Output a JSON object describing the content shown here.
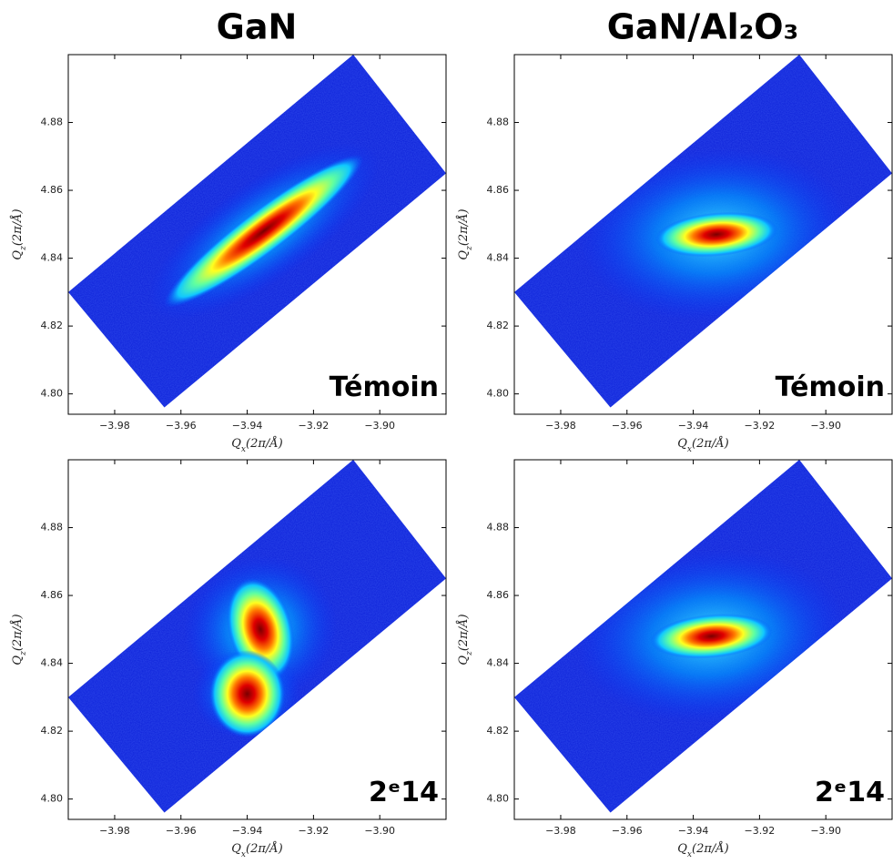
{
  "titles": [
    "GaN",
    "GaN/Al₂O₃"
  ],
  "chart_data": [
    {
      "type": "heatmap",
      "label": "Témoin",
      "xlabel": [
        "Q",
        "x",
        "(2π/Å)"
      ],
      "ylabel": [
        "Q",
        "z",
        "(2π/Å)"
      ],
      "xlim": [
        -3.994,
        -3.88
      ],
      "ylim": [
        4.794,
        4.9
      ],
      "xticks": [
        {
          "value": -3.98,
          "label": "−3.98"
        },
        {
          "value": -3.96,
          "label": "−3.96"
        },
        {
          "value": -3.94,
          "label": "−3.94"
        },
        {
          "value": -3.92,
          "label": "−3.92"
        },
        {
          "value": -3.9,
          "label": "−3.90"
        }
      ],
      "yticks": [
        {
          "value": 4.8,
          "label": "4.80"
        },
        4.82,
        4.84,
        4.86,
        4.88
      ],
      "region": {
        "x": [
          -3.994,
          -3.965,
          -3.88,
          -3.908
        ],
        "y": [
          4.83,
          4.796,
          4.865,
          4.9
        ]
      },
      "peaks": {
        "x": [
          -3.935
        ],
        "y": [
          4.848
        ]
      }
    },
    {
      "type": "heatmap",
      "label": "Témoin",
      "xlabel": [
        "Q",
        "x",
        "(2π/Å)"
      ],
      "ylabel": [
        "Q",
        "z",
        "(2π/Å)"
      ],
      "xlim": [
        -3.994,
        -3.88
      ],
      "ylim": [
        4.794,
        4.9
      ],
      "xticks": [
        {
          "value": -3.98,
          "label": "−3.98"
        },
        {
          "value": -3.96,
          "label": "−3.96"
        },
        {
          "value": -3.94,
          "label": "−3.94"
        },
        {
          "value": -3.92,
          "label": "−3.92"
        },
        {
          "value": -3.9,
          "label": "−3.90"
        }
      ],
      "yticks": [
        {
          "value": 4.8,
          "label": "4.80"
        },
        4.82,
        4.84,
        4.86,
        4.88
      ],
      "region": {
        "x": [
          -3.994,
          -3.965,
          -3.88,
          -3.908
        ],
        "y": [
          4.83,
          4.796,
          4.865,
          4.9
        ]
      },
      "peaks": {
        "x": [
          -3.933
        ],
        "y": [
          4.847
        ]
      }
    },
    {
      "type": "heatmap",
      "label": "2ᵉ14",
      "xlabel": [
        "Q",
        "x",
        "(2π/Å)"
      ],
      "ylabel": [
        "Q",
        "z",
        "(2π/Å)"
      ],
      "xlim": [
        -3.994,
        -3.88
      ],
      "ylim": [
        4.794,
        4.9
      ],
      "xticks": [
        {
          "value": -3.98,
          "label": "−3.98"
        },
        {
          "value": -3.96,
          "label": "−3.96"
        },
        {
          "value": -3.94,
          "label": "−3.94"
        },
        {
          "value": -3.92,
          "label": "−3.92"
        },
        {
          "value": -3.9,
          "label": "−3.90"
        }
      ],
      "yticks": [
        {
          "value": 4.8,
          "label": "4.80"
        },
        4.82,
        4.84,
        4.86,
        4.88
      ],
      "region": {
        "x": [
          -3.994,
          -3.965,
          -3.88,
          -3.908
        ],
        "y": [
          4.83,
          4.796,
          4.865,
          4.9
        ]
      },
      "peaks": {
        "x": [
          -3.936,
          -3.94
        ],
        "y": [
          4.85,
          4.831
        ]
      }
    },
    {
      "type": "heatmap",
      "label": "2ᵉ14",
      "xlabel": [
        "Q",
        "x",
        "(2π/Å)"
      ],
      "ylabel": [
        "Q",
        "z",
        "(2π/Å)"
      ],
      "xlim": [
        -3.994,
        -3.88
      ],
      "ylim": [
        4.794,
        4.9
      ],
      "xticks": [
        {
          "value": -3.98,
          "label": "−3.98"
        },
        {
          "value": -3.96,
          "label": "−3.96"
        },
        {
          "value": -3.94,
          "label": "−3.94"
        },
        {
          "value": -3.92,
          "label": "−3.92"
        },
        {
          "value": -3.9,
          "label": "−3.90"
        }
      ],
      "yticks": [
        {
          "value": 4.8,
          "label": "4.80"
        },
        4.82,
        4.84,
        4.86,
        4.88
      ],
      "region": {
        "x": [
          -3.994,
          -3.965,
          -3.88,
          -3.908
        ],
        "y": [
          4.83,
          4.796,
          4.865,
          4.9
        ]
      },
      "peaks": {
        "x": [
          -3.9345
        ],
        "y": [
          4.848
        ]
      }
    }
  ]
}
